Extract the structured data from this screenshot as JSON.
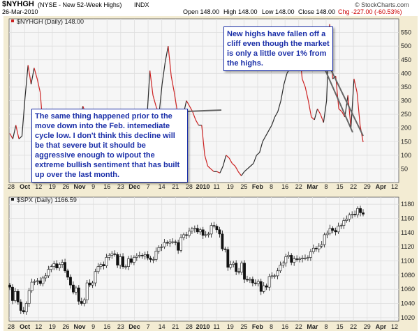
{
  "header": {
    "symbol": "$NYHGH",
    "description": "(NYSE - New 52-Week Highs)",
    "exchange": "INDX",
    "date": "26-Mar-2010",
    "open": "Open 148.00",
    "high": "High 148.00",
    "low": "Low 148.00",
    "close": "Close 148.00",
    "change": "Chg -227.00 (-60.53%)",
    "credit": "© StockCharts.com"
  },
  "chart_data": [
    {
      "type": "line",
      "legend": "$NYHGH (Daily) 148.00",
      "ylim": [
        0,
        600
      ],
      "y_ticks": [
        "50",
        "100",
        "150",
        "200",
        "250",
        "300",
        "350",
        "400",
        "450",
        "500",
        "550"
      ],
      "x_ticks": [
        "28",
        "Oct",
        "12",
        "19",
        "26",
        "Nov",
        "9",
        "16",
        "23",
        "Dec",
        "7",
        "14",
        "21",
        "28",
        "2010",
        "11",
        "19",
        "25",
        "Feb",
        "8",
        "16",
        "22",
        "Mar",
        "8",
        "15",
        "22",
        "29",
        "Apr",
        "12"
      ],
      "values": [
        180,
        160,
        210,
        160,
        170,
        310,
        430,
        360,
        420,
        380,
        330,
        190,
        270,
        260,
        220,
        250,
        150,
        110,
        180,
        160,
        120,
        140,
        130,
        230,
        280,
        250,
        200,
        180,
        190,
        175,
        260,
        220,
        270,
        250,
        240,
        270,
        230,
        200,
        240,
        260,
        250,
        270,
        250,
        240,
        260,
        230,
        410,
        320,
        280,
        250,
        360,
        440,
        500,
        390,
        330,
        260,
        270,
        250,
        300,
        280,
        260,
        230,
        210,
        210,
        100,
        60,
        50,
        40,
        40,
        35,
        60,
        100,
        90,
        70,
        60,
        40,
        25,
        40,
        50,
        60,
        70,
        100,
        110,
        150,
        170,
        190,
        210,
        240,
        260,
        300,
        360,
        400,
        420,
        500,
        450,
        490,
        380,
        350,
        300,
        240,
        230,
        270,
        250,
        220,
        300,
        580,
        380,
        390,
        270,
        260,
        240,
        320,
        200,
        380,
        330,
        210,
        148
      ]
    },
    {
      "type": "candlestick",
      "legend": "$SPX (Daily) 1166.59",
      "ylim": [
        1015,
        1190
      ],
      "y_ticks": [
        "1020",
        "1040",
        "1060",
        "1080",
        "1100",
        "1120",
        "1140",
        "1160",
        "1180"
      ],
      "x_ticks": [
        "28",
        "Oct",
        "12",
        "19",
        "26",
        "Nov",
        "9",
        "16",
        "23",
        "Dec",
        "7",
        "14",
        "21",
        "28",
        "2010",
        "11",
        "19",
        "25",
        "Feb",
        "8",
        "16",
        "22",
        "Mar",
        "8",
        "15",
        "22",
        "29",
        "Apr",
        "12"
      ],
      "close": [
        1063,
        1044,
        1057,
        1042,
        1030,
        1028,
        1040,
        1058,
        1070,
        1071,
        1072,
        1068,
        1076,
        1079,
        1088,
        1092,
        1096,
        1090,
        1095,
        1098,
        1086,
        1077,
        1066,
        1056,
        1062,
        1043,
        1040,
        1045,
        1069,
        1066,
        1069,
        1085,
        1092,
        1095,
        1093,
        1105,
        1108,
        1110,
        1109,
        1094,
        1106,
        1092,
        1092,
        1103,
        1098,
        1105,
        1107,
        1108,
        1107,
        1109,
        1104,
        1102,
        1102,
        1114,
        1119,
        1120,
        1126,
        1125,
        1127,
        1127,
        1126,
        1115,
        1133,
        1137,
        1136,
        1142,
        1145,
        1146,
        1141,
        1144,
        1136,
        1137,
        1138,
        1150,
        1149,
        1144,
        1138,
        1117,
        1116,
        1091,
        1095,
        1097,
        1085,
        1084,
        1097,
        1074,
        1073,
        1074,
        1069,
        1068,
        1071,
        1057,
        1065,
        1063,
        1078,
        1079,
        1079,
        1086,
        1094,
        1097,
        1106,
        1108,
        1098,
        1103,
        1102,
        1103,
        1104,
        1104,
        1105,
        1113,
        1118,
        1117,
        1121,
        1123,
        1137,
        1139,
        1146,
        1143,
        1141,
        1149,
        1150,
        1157,
        1159,
        1165,
        1166,
        1165,
        1174,
        1168,
        1166
      ]
    }
  ],
  "annotations": {
    "left_note": "The same thing happened prior to the move down into the Feb. intemediate cycle low. I don't think this decline will be that severe but it should be aggressive enough to wipout the extreme bullish sentiment that has built up over the last month.",
    "right_note": "New highs have fallen off a cliff even though the market is only a little over 1% from the highs."
  },
  "colors": {
    "line_up": "#2a2a2a",
    "line_down": "#cc2222",
    "panel_bg": "#f6f6f6",
    "frame_bg": "#f3ecd3",
    "note_text": "#1b2fa8"
  }
}
